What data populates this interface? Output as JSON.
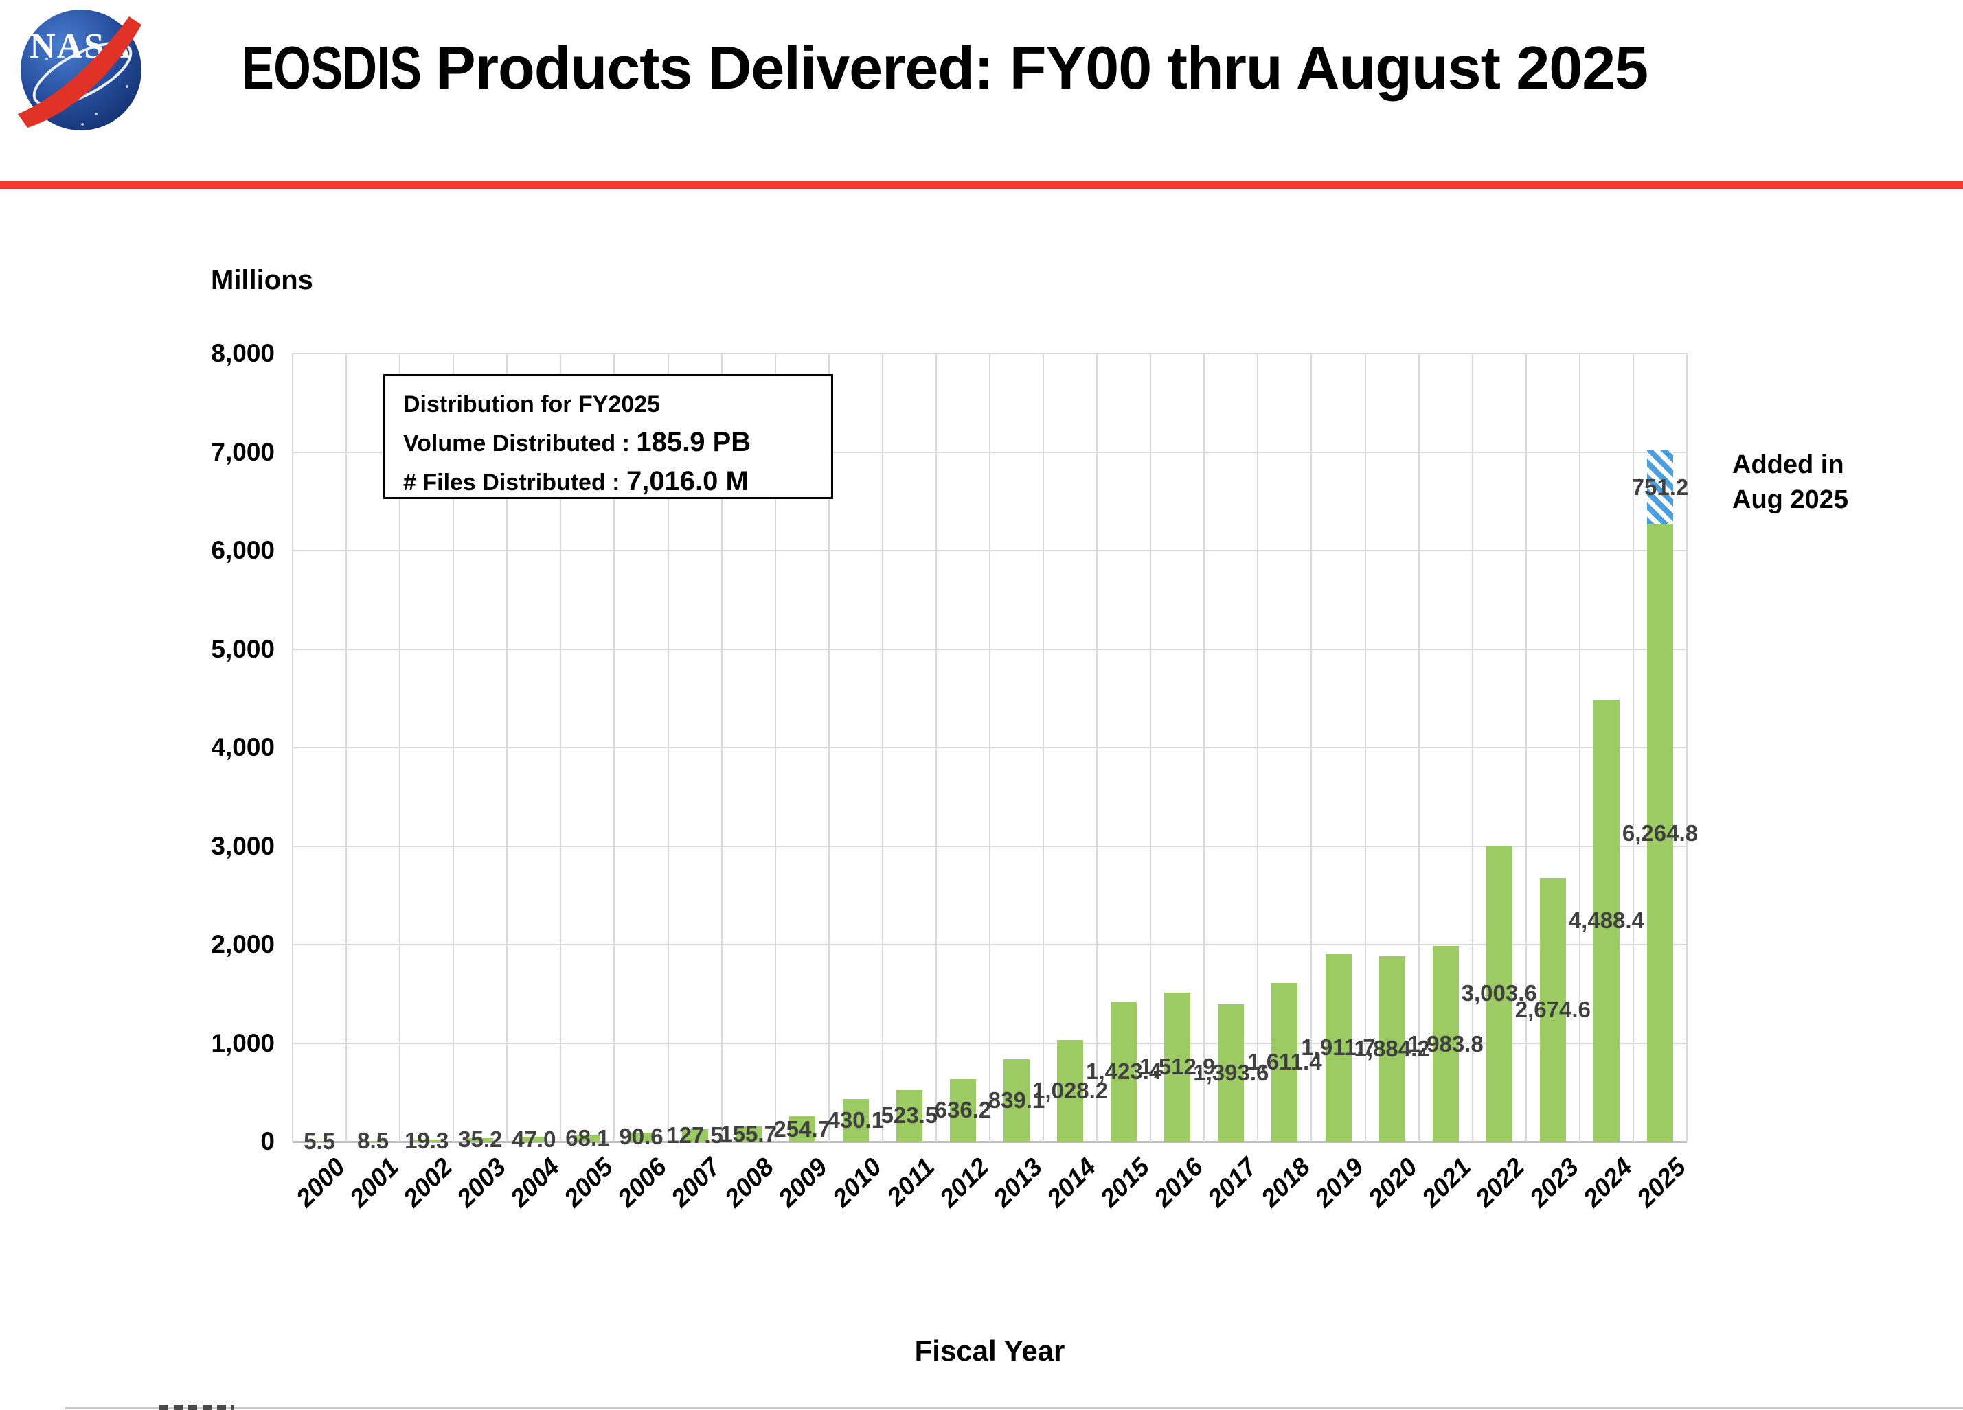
{
  "header": {
    "title_prefix": "EOSDIS",
    "title_rest": " Products Delivered: FY00 thru August 2025",
    "logo": "nasa-meatball-logo",
    "rule_color": "#F2392C"
  },
  "y_axis_title": "Millions",
  "x_axis_title": "Fiscal Year",
  "infobox": {
    "line1": "Distribution for FY2025",
    "volume_label": "Volume Distributed :",
    "volume_value": "185.9 PB",
    "files_label": "# Files Distributed :",
    "files_value": "7,016.0 M"
  },
  "added_note": {
    "line1": "Added in",
    "line2": "Aug 2025"
  },
  "chart_data": {
    "type": "bar",
    "title": "EOSDIS Products Delivered: FY00 thru August 2025",
    "xlabel": "Fiscal Year",
    "ylabel": "Millions",
    "ylim": [
      0,
      8000
    ],
    "ytick_interval": 1000,
    "yticks": [
      "0",
      "1,000",
      "2,000",
      "3,000",
      "4,000",
      "5,000",
      "6,000",
      "7,000",
      "8,000"
    ],
    "grid": true,
    "legend_position": "none",
    "categories": [
      "2000",
      "2001",
      "2002",
      "2003",
      "2004",
      "2005",
      "2006",
      "2007",
      "2008",
      "2009",
      "2010",
      "2011",
      "2012",
      "2013",
      "2014",
      "2015",
      "2016",
      "2017",
      "2018",
      "2019",
      "2020",
      "2021",
      "2022",
      "2023",
      "2024",
      "2025"
    ],
    "values": [
      5.5,
      8.5,
      19.3,
      35.2,
      47.0,
      68.1,
      90.6,
      127.5,
      155.7,
      254.7,
      430.1,
      523.5,
      636.2,
      839.1,
      1028.2,
      1423.4,
      1512.9,
      1393.6,
      1611.4,
      1911.7,
      1884.2,
      1983.8,
      3003.6,
      2674.6,
      4488.4,
      6264.8
    ],
    "labels": [
      "5.5",
      "8.5",
      "19.3",
      "35.2",
      "47.0",
      "68.1",
      "90.6",
      "127.5",
      "155.7",
      "254.7",
      "430.1",
      "523.5",
      "636.2",
      "839.1",
      "1,028.2",
      "1,423.4",
      "1,512.9",
      "1,393.6",
      "1,611.4",
      "1,911.7",
      "1,884.2",
      "1,983.8",
      "3,003.6",
      "2,674.6",
      "4,488.4",
      "6,264.8"
    ],
    "added_segment": {
      "category": "2025",
      "value": 751.2,
      "label": "751.2",
      "style": "blue-diagonal-hatch"
    },
    "colors": {
      "bar": "#9CCB63",
      "hatch_stripe": "#4C9FDF",
      "hatch_bg": "#FFFFFF",
      "data_label": "#404040",
      "gridline": "#D9D9D9",
      "axis_line": "#BFBFBF",
      "text": "#000000"
    }
  }
}
